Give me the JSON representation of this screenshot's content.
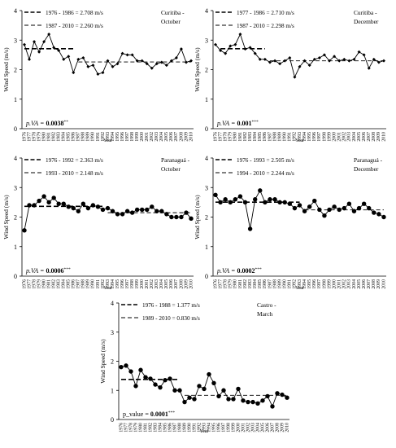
{
  "chart_data": [
    {
      "type": "line",
      "station": "Curitiba -",
      "month": "October",
      "xlabel": "Year",
      "ylabel": "Wind Speed (m/s)",
      "ylim": [
        0,
        4
      ],
      "yticks": [
        "0",
        "1",
        "2",
        "3",
        "4"
      ],
      "x": [
        1976,
        1977,
        1978,
        1979,
        1980,
        1981,
        1982,
        1983,
        1984,
        1985,
        1986,
        1987,
        1988,
        1989,
        1990,
        1991,
        1992,
        1993,
        1994,
        1995,
        1996,
        1997,
        1998,
        1999,
        2000,
        2001,
        2002,
        2003,
        2004,
        2005,
        2006,
        2007,
        2008,
        2009,
        2010
      ],
      "values": [
        2.85,
        2.35,
        2.95,
        2.6,
        2.95,
        3.2,
        2.75,
        2.65,
        2.35,
        2.45,
        1.9,
        2.35,
        2.4,
        2.1,
        2.15,
        1.85,
        1.9,
        2.3,
        2.1,
        2.2,
        2.55,
        2.5,
        2.5,
        2.3,
        2.3,
        2.2,
        2.05,
        2.2,
        2.25,
        2.15,
        2.3,
        2.4,
        2.7,
        2.25,
        2.3
      ],
      "marker": "diamond",
      "legend": [
        "1976 - 1986 = 2.708 m/s",
        "1987 - 2010 = 2.260 m/s"
      ],
      "means": [
        {
          "from": 1976,
          "to": 1986,
          "value": 2.708
        },
        {
          "from": 1987,
          "to": 2010,
          "value": 2.26
        }
      ],
      "pval_label": "p.VA = ",
      "pval_value": "0.0038",
      "pval_stars": "**"
    },
    {
      "type": "line",
      "station": "Curitiba -",
      "month": "December",
      "xlabel": "Year",
      "ylabel": "Wind Speed (m/s)",
      "ylim": [
        0,
        4
      ],
      "yticks": [
        "0",
        "1",
        "2",
        "3",
        "4"
      ],
      "x": [
        1976,
        1977,
        1978,
        1979,
        1980,
        1981,
        1982,
        1983,
        1984,
        1985,
        1986,
        1987,
        1988,
        1989,
        1990,
        1991,
        1992,
        1993,
        1994,
        1995,
        1996,
        1997,
        1998,
        1999,
        2000,
        2001,
        2002,
        2003,
        2004,
        2005,
        2006,
        2007,
        2008,
        2009,
        2010
      ],
      "values": [
        2.85,
        2.65,
        2.55,
        2.8,
        2.85,
        3.2,
        2.7,
        2.75,
        2.55,
        2.35,
        2.35,
        2.25,
        2.3,
        2.2,
        2.3,
        2.4,
        1.75,
        2.1,
        2.3,
        2.15,
        2.35,
        2.4,
        2.5,
        2.3,
        2.45,
        2.3,
        2.35,
        2.3,
        2.35,
        2.6,
        2.5,
        2.05,
        2.35,
        2.25,
        2.3
      ],
      "marker": "diamond",
      "legend": [
        "1977 - 1986 = 2.710 m/s",
        "1987 - 2010 = 2.298 m/s"
      ],
      "means": [
        {
          "from": 1977,
          "to": 1986,
          "value": 2.71
        },
        {
          "from": 1987,
          "to": 2010,
          "value": 2.298
        }
      ],
      "pval_label": "p.VA = ",
      "pval_value": "0.001",
      "pval_stars": "***"
    },
    {
      "type": "line",
      "station": "Paranaguá -",
      "month": "October",
      "xlabel": "Year",
      "ylabel": "Wind Speed (m/s)",
      "ylim": [
        0,
        4
      ],
      "yticks": [
        "0",
        "1",
        "2",
        "3",
        "4"
      ],
      "x": [
        1976,
        1977,
        1978,
        1979,
        1980,
        1981,
        1982,
        1983,
        1984,
        1985,
        1986,
        1987,
        1988,
        1989,
        1990,
        1991,
        1992,
        1993,
        1994,
        1995,
        1996,
        1997,
        1998,
        1999,
        2000,
        2001,
        2002,
        2003,
        2004,
        2005,
        2006,
        2007,
        2008,
        2009,
        2010
      ],
      "values": [
        1.55,
        2.4,
        2.4,
        2.55,
        2.7,
        2.5,
        2.65,
        2.45,
        2.45,
        2.35,
        2.3,
        2.2,
        2.45,
        2.3,
        2.4,
        2.35,
        2.25,
        2.3,
        2.2,
        2.1,
        2.1,
        2.2,
        2.15,
        2.25,
        2.25,
        2.25,
        2.35,
        2.2,
        2.2,
        2.1,
        2.0,
        2.0,
        2.0,
        2.15,
        1.95
      ],
      "marker": "circle",
      "legend": [
        "1976 - 1992 = 2.363 m/s",
        "1993 - 2010 = 2.148 m/s"
      ],
      "means": [
        {
          "from": 1976,
          "to": 1992,
          "value": 2.363
        },
        {
          "from": 1993,
          "to": 2010,
          "value": 2.148
        }
      ],
      "pval_label": "p.VA = ",
      "pval_value": "0.0006",
      "pval_stars": "***"
    },
    {
      "type": "line",
      "station": "Paranaguá -",
      "month": "December",
      "xlabel": "Year",
      "ylabel": "Wind Speed (m/s)",
      "ylim": [
        0,
        4
      ],
      "yticks": [
        "0",
        "1",
        "2",
        "3",
        "4"
      ],
      "x": [
        1976,
        1977,
        1978,
        1979,
        1980,
        1981,
        1982,
        1983,
        1984,
        1985,
        1986,
        1987,
        1988,
        1989,
        1990,
        1991,
        1992,
        1993,
        1994,
        1995,
        1996,
        1997,
        1998,
        1999,
        2000,
        2001,
        2002,
        2003,
        2004,
        2005,
        2006,
        2007,
        2008,
        2009,
        2010
      ],
      "values": [
        2.75,
        2.5,
        2.6,
        2.5,
        2.6,
        2.7,
        2.5,
        1.6,
        2.6,
        2.9,
        2.5,
        2.6,
        2.6,
        2.5,
        2.5,
        2.45,
        2.3,
        2.4,
        2.2,
        2.35,
        2.55,
        2.25,
        2.05,
        2.25,
        2.35,
        2.25,
        2.3,
        2.45,
        2.2,
        2.3,
        2.45,
        2.3,
        2.15,
        2.1,
        2.0
      ],
      "marker": "circle",
      "legend": [
        "1976 - 1993 = 2.505 m/s",
        "1994 - 2010 = 2.244 m/s"
      ],
      "means": [
        {
          "from": 1976,
          "to": 1993,
          "value": 2.505
        },
        {
          "from": 1994,
          "to": 2010,
          "value": 2.244
        }
      ],
      "pval_label": "p.VA = ",
      "pval_value": "0.0002",
      "pval_stars": "***"
    },
    {
      "type": "line",
      "station": "Castro -",
      "month": "March",
      "xlabel": "Year",
      "ylabel": "Wind Speed (m/s)",
      "ylim": [
        0,
        4
      ],
      "yticks": [
        "0",
        "1",
        "2",
        "3",
        "4"
      ],
      "x": [
        1976,
        1977,
        1978,
        1979,
        1980,
        1981,
        1982,
        1983,
        1984,
        1985,
        1986,
        1987,
        1988,
        1989,
        1990,
        1991,
        1992,
        1993,
        1994,
        1995,
        1996,
        1997,
        1998,
        1999,
        2000,
        2001,
        2002,
        2003,
        2004,
        2005,
        2006,
        2007,
        2008,
        2009,
        2010
      ],
      "values": [
        1.8,
        1.85,
        1.65,
        1.15,
        1.7,
        1.45,
        1.4,
        1.2,
        1.1,
        1.35,
        1.4,
        1.0,
        1.0,
        0.6,
        0.75,
        0.7,
        1.15,
        1.05,
        1.55,
        1.25,
        0.8,
        1.0,
        0.7,
        0.7,
        1.05,
        0.65,
        0.6,
        0.6,
        0.55,
        0.65,
        0.8,
        0.45,
        0.9,
        0.85,
        0.75
      ],
      "marker": "circle",
      "legend": [
        "1976 - 1988 = 1.377 m/s",
        "1989 - 2010 = 0.830 m/s"
      ],
      "means": [
        {
          "from": 1976,
          "to": 1988,
          "value": 1.377
        },
        {
          "from": 1989,
          "to": 2010,
          "value": 0.83
        }
      ],
      "pval_label": "p_value = ",
      "pval_value": "0.0001",
      "pval_stars": "***"
    }
  ]
}
